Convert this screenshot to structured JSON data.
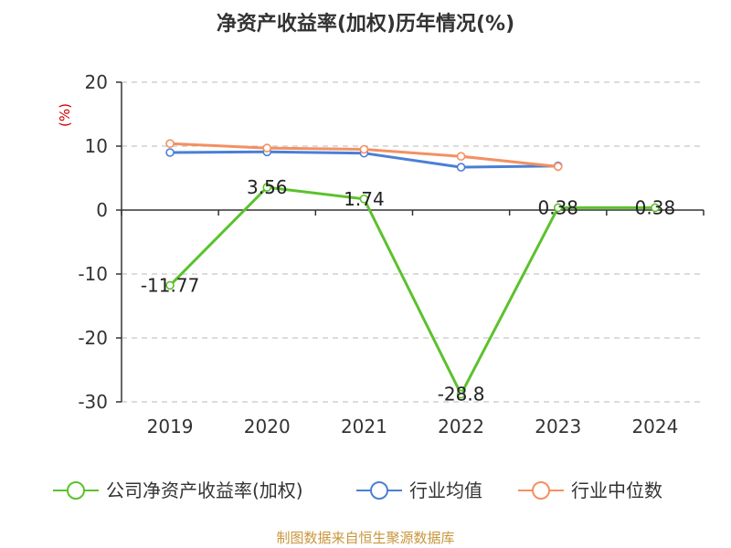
{
  "chart_data": {
    "type": "line",
    "title": "净资产收益率(加权)历年情况(%)",
    "ylabel": "(%)",
    "categories": [
      "2019",
      "2020",
      "2021",
      "2022",
      "2023",
      "2024"
    ],
    "ylim": [
      -30,
      20
    ],
    "yticks": [
      20,
      10,
      0,
      -10,
      -20,
      -30
    ],
    "grid": true,
    "legend_position": "bottom",
    "series": [
      {
        "name": "公司净资产收益率(加权)",
        "color": "#5cc12d",
        "values": [
          -11.77,
          3.56,
          1.74,
          -28.8,
          0.38,
          0.38
        ],
        "data_labels": [
          "-11.77",
          "3.56",
          "1.74",
          "-28.8",
          "0.38",
          "0.38"
        ]
      },
      {
        "name": "行业均值",
        "color": "#4a7fd6",
        "values": [
          9.0,
          9.1,
          8.9,
          6.7,
          6.9,
          null
        ]
      },
      {
        "name": "行业中位数",
        "color": "#f39062",
        "values": [
          10.4,
          9.7,
          9.5,
          8.4,
          6.8,
          null
        ]
      }
    ]
  },
  "source": "制图数据来自恒生聚源数据库"
}
